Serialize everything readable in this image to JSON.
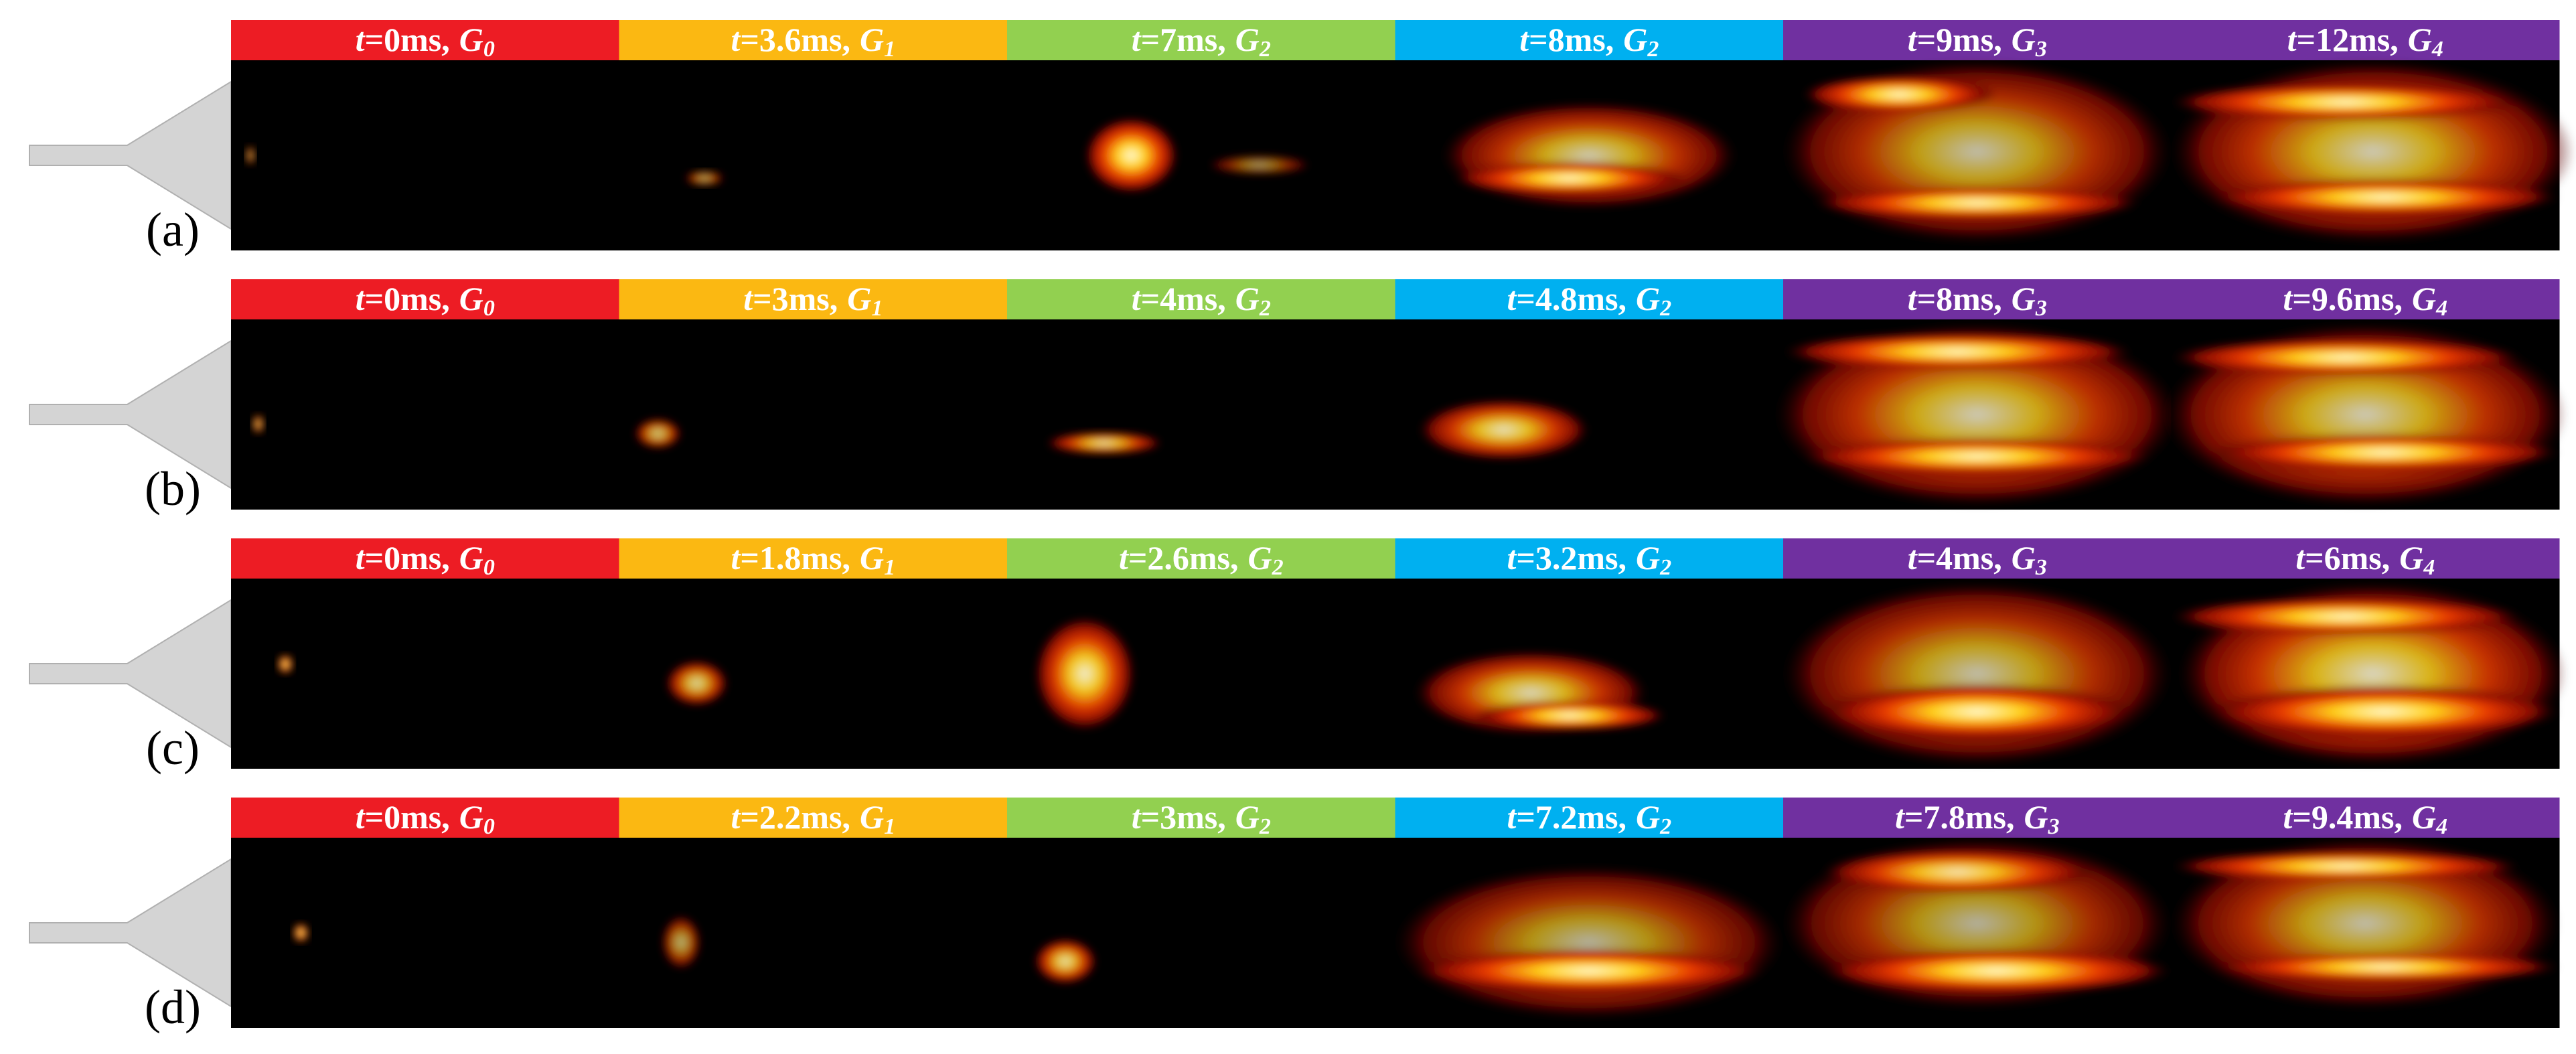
{
  "time_symbol": "t",
  "group_symbol": "G",
  "header_colors": [
    "#ed1c24",
    "#fbb812",
    "#92d050",
    "#00b0f0",
    "#7030a0",
    "#7030a0"
  ],
  "rows": [
    {
      "label": "(a)",
      "frames": [
        {
          "time": "=0ms,",
          "group_index": "0"
        },
        {
          "time": "=3.6ms,",
          "group_index": "1"
        },
        {
          "time": "=7ms,",
          "group_index": "2"
        },
        {
          "time": "=8ms,",
          "group_index": "2"
        },
        {
          "time": "=9ms,",
          "group_index": "3"
        },
        {
          "time": "=12ms,",
          "group_index": "4"
        }
      ]
    },
    {
      "label": "(b)",
      "frames": [
        {
          "time": "=0ms,",
          "group_index": "0"
        },
        {
          "time": "=3ms,",
          "group_index": "1"
        },
        {
          "time": "=4ms,",
          "group_index": "2"
        },
        {
          "time": "=4.8ms,",
          "group_index": "2"
        },
        {
          "time": "=8ms,",
          "group_index": "3"
        },
        {
          "time": "=9.6ms,",
          "group_index": "4"
        }
      ]
    },
    {
      "label": "(c)",
      "frames": [
        {
          "time": "=0ms,",
          "group_index": "0"
        },
        {
          "time": "=1.8ms,",
          "group_index": "1"
        },
        {
          "time": "=2.6ms,",
          "group_index": "2"
        },
        {
          "time": "=3.2ms,",
          "group_index": "2"
        },
        {
          "time": "=4ms,",
          "group_index": "3"
        },
        {
          "time": "=6ms,",
          "group_index": "4"
        }
      ]
    },
    {
      "label": "(d)",
      "frames": [
        {
          "time": "=0ms,",
          "group_index": "0"
        },
        {
          "time": "=2.2ms,",
          "group_index": "1"
        },
        {
          "time": "=3ms,",
          "group_index": "2"
        },
        {
          "time": "=7.2ms,",
          "group_index": "2"
        },
        {
          "time": "=7.8ms,",
          "group_index": "3"
        },
        {
          "time": "=9.4ms,",
          "group_index": "4"
        }
      ]
    }
  ]
}
